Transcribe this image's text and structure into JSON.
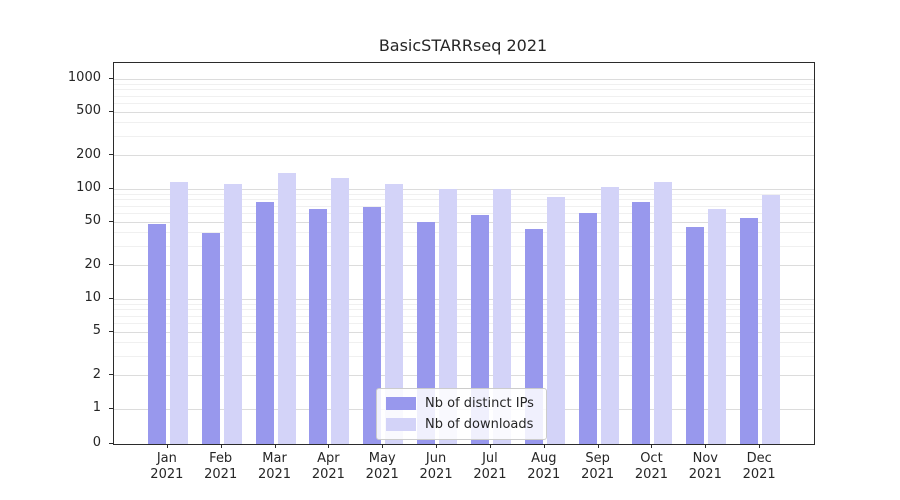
{
  "chart_data": {
    "type": "bar",
    "title": "BasicSTARRseq 2021",
    "categories": [
      "Jan 2021",
      "Feb 2021",
      "Mar 2021",
      "Apr 2021",
      "May 2021",
      "Jun 2021",
      "Jul 2021",
      "Aug 2021",
      "Sep 2021",
      "Oct 2021",
      "Nov 2021",
      "Dec 2021"
    ],
    "series": [
      {
        "name": "Nb of distinct IPs",
        "color": "#9898ed",
        "values": [
          48,
          40,
          76,
          66,
          68,
          50,
          58,
          43,
          61,
          77,
          45,
          55
        ]
      },
      {
        "name": "Nb of downloads",
        "color": "#d3d3f8",
        "values": [
          115,
          112,
          140,
          127,
          110,
          100,
          100,
          85,
          104,
          116,
          66,
          88
        ]
      }
    ],
    "yscale": "symlog",
    "yticks": [
      0,
      1,
      2,
      5,
      10,
      20,
      50,
      100,
      200,
      500,
      1000
    ],
    "ylim": [
      0,
      1400
    ],
    "xlabel": "",
    "ylabel": "",
    "grid": true,
    "legend_position": "lower center"
  }
}
